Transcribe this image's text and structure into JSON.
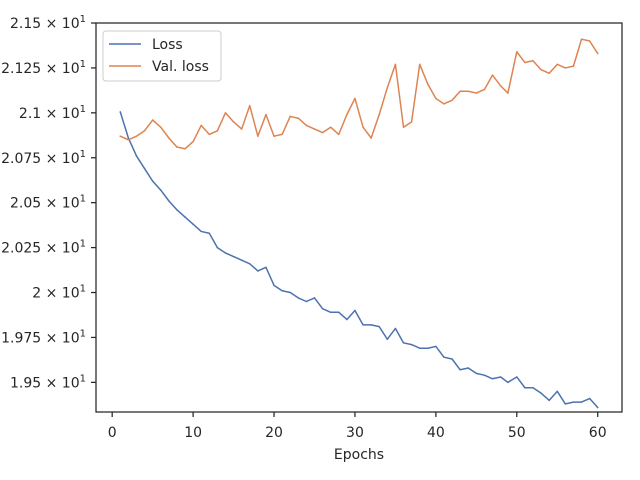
{
  "chart_data": {
    "type": "line",
    "title": "",
    "xlabel": "Epochs",
    "ylabel": "",
    "xlim": [
      -2,
      63
    ],
    "ylim": [
      19.335,
      21.5
    ],
    "grid": false,
    "legend_position": "top-left",
    "x_ticks": [
      0,
      10,
      20,
      30,
      40,
      50,
      60
    ],
    "x_tick_labels": [
      "0",
      "10",
      "20",
      "30",
      "40",
      "50",
      "60"
    ],
    "y_ticks": [
      19.5,
      19.75,
      20.0,
      20.25,
      20.5,
      20.75,
      21.0,
      21.25,
      21.5
    ],
    "y_tick_mantissas": [
      "1.95",
      "1.975",
      "2",
      "2.025",
      "2.05",
      "2.075",
      "2.1",
      "2.125",
      "2.15"
    ],
    "y_tick_base": "× 10",
    "y_tick_exponent": "1",
    "x": [
      1,
      2,
      3,
      4,
      5,
      6,
      7,
      8,
      9,
      10,
      11,
      12,
      13,
      14,
      15,
      16,
      17,
      18,
      19,
      20,
      21,
      22,
      23,
      24,
      25,
      26,
      27,
      28,
      29,
      30,
      31,
      32,
      33,
      34,
      35,
      36,
      37,
      38,
      39,
      40,
      41,
      42,
      43,
      44,
      45,
      46,
      47,
      48,
      48.9,
      50,
      51,
      52,
      53,
      54,
      55,
      56,
      57,
      58,
      59,
      60
    ],
    "series": [
      {
        "name": "Loss",
        "color": "#4c72b0",
        "values": [
          21.005,
          20.86,
          20.76,
          20.69,
          20.62,
          20.57,
          20.51,
          20.46,
          20.42,
          20.38,
          20.34,
          20.33,
          20.25,
          20.22,
          20.2,
          20.18,
          20.16,
          20.12,
          20.14,
          20.04,
          20.01,
          20.0,
          19.97,
          19.95,
          19.97,
          19.91,
          19.89,
          19.89,
          19.85,
          19.9,
          19.82,
          19.82,
          19.81,
          19.74,
          19.8,
          19.72,
          19.71,
          19.69,
          19.69,
          19.7,
          19.64,
          19.63,
          19.57,
          19.58,
          19.55,
          19.54,
          19.52,
          19.53,
          19.5,
          19.53,
          19.47,
          19.47,
          19.44,
          19.4,
          19.45,
          19.38,
          19.39,
          19.39,
          19.41,
          19.36
        ]
      },
      {
        "name": "Val. loss",
        "color": "#dd8452",
        "values": [
          20.87,
          20.85,
          20.87,
          20.9,
          20.96,
          20.92,
          20.86,
          20.81,
          20.8,
          20.84,
          20.93,
          20.88,
          20.9,
          21.0,
          20.95,
          20.91,
          21.04,
          20.87,
          20.99,
          20.87,
          20.88,
          20.98,
          20.97,
          20.93,
          20.91,
          20.89,
          20.92,
          20.88,
          20.99,
          21.08,
          20.92,
          20.86,
          20.99,
          21.14,
          21.27,
          20.92,
          20.95,
          21.27,
          21.16,
          21.08,
          21.05,
          21.07,
          21.12,
          21.12,
          21.11,
          21.13,
          21.21,
          21.15,
          21.11,
          21.34,
          21.28,
          21.29,
          21.24,
          21.22,
          21.27,
          21.25,
          21.26,
          21.41,
          21.4,
          21.33
        ]
      }
    ]
  }
}
